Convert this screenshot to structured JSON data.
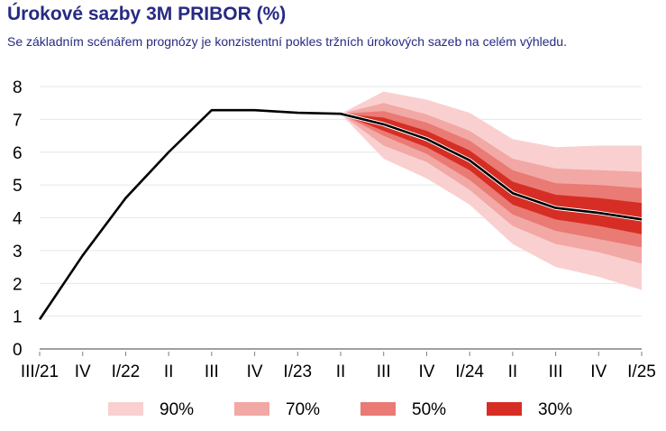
{
  "header": {
    "title": "Úrokové sazby 3M PRIBOR (%)",
    "subtitle": "Se základním scénářem prognózy je konzistentní pokles tržních úrokových sazeb na celém výhledu."
  },
  "chart_data": {
    "type": "area",
    "subtype": "fan-chart",
    "title": "Úrokové sazby 3M PRIBOR (%)",
    "subtitle": "Se základním scénářem prognózy je konzistentní pokles tržních úrokových sazeb na celém výhledu.",
    "xlabel": "",
    "ylabel": "",
    "ylim": [
      0,
      8
    ],
    "yticks": [
      0,
      1,
      2,
      3,
      4,
      5,
      6,
      7,
      8
    ],
    "grid": true,
    "categories": [
      "III/21",
      "IV",
      "I/22",
      "II",
      "III",
      "IV",
      "I/23",
      "II",
      "III",
      "IV",
      "I/24",
      "II",
      "III",
      "IV",
      "I/25"
    ],
    "line": {
      "name": "3M PRIBOR",
      "color": "#000000",
      "values": [
        0.9,
        2.85,
        4.6,
        6.0,
        7.28,
        7.28,
        7.2,
        7.17,
        6.85,
        6.4,
        5.75,
        4.75,
        4.3,
        4.15,
        3.95
      ]
    },
    "fan_start_index": 7,
    "bands": [
      {
        "name": "90%",
        "color": "#f9d0cf",
        "lower": [
          7.17,
          5.8,
          5.2,
          4.4,
          3.2,
          2.5,
          2.2,
          1.8
        ],
        "upper": [
          7.17,
          7.85,
          7.6,
          7.2,
          6.4,
          6.15,
          6.2,
          6.2
        ]
      },
      {
        "name": "70%",
        "color": "#f2a8a4",
        "lower": [
          7.17,
          6.2,
          5.7,
          4.85,
          3.75,
          3.2,
          2.95,
          2.6
        ],
        "upper": [
          7.17,
          7.5,
          7.15,
          6.65,
          5.8,
          5.5,
          5.45,
          5.4
        ]
      },
      {
        "name": "50%",
        "color": "#ea7a74",
        "lower": [
          7.17,
          6.5,
          5.95,
          5.15,
          4.1,
          3.6,
          3.35,
          3.1
        ],
        "upper": [
          7.17,
          7.25,
          6.9,
          6.35,
          5.45,
          5.05,
          5.0,
          4.9
        ]
      },
      {
        "name": "30%",
        "color": "#d62e24",
        "lower": [
          7.17,
          6.65,
          6.15,
          5.45,
          4.4,
          3.95,
          3.75,
          3.5
        ],
        "upper": [
          7.17,
          7.05,
          6.65,
          6.05,
          5.1,
          4.7,
          4.6,
          4.45
        ]
      }
    ],
    "legend": {
      "placement": "bottom",
      "entries": [
        {
          "label": "90%",
          "color": "#f9d0cf"
        },
        {
          "label": "70%",
          "color": "#f2a8a4"
        },
        {
          "label": "50%",
          "color": "#ea7a74"
        },
        {
          "label": "30%",
          "color": "#d62e24"
        }
      ]
    },
    "colors": {
      "grid": "#e6e6e6",
      "axis": "#808080",
      "title": "#262a82"
    }
  }
}
